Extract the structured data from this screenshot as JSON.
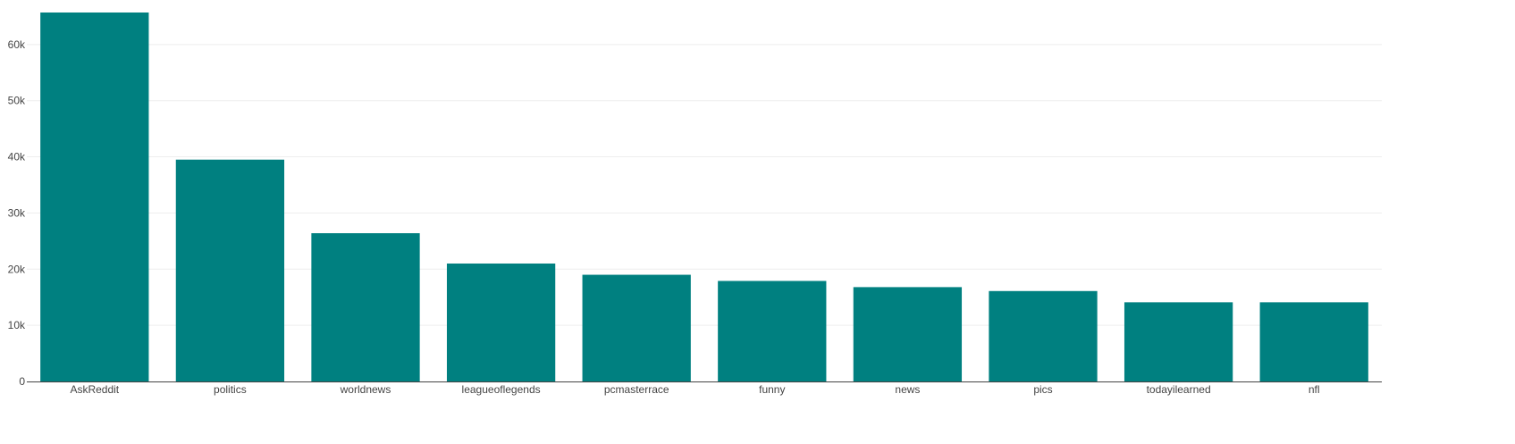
{
  "chart_data": {
    "type": "bar",
    "title": "",
    "xlabel": "",
    "ylabel": "",
    "categories": [
      "AskReddit",
      "politics",
      "worldnews",
      "leagueoflegends",
      "pcmasterrace",
      "funny",
      "news",
      "pics",
      "todayilearned",
      "nfl"
    ],
    "values": [
      65700,
      39500,
      26400,
      21000,
      19000,
      17900,
      16800,
      16100,
      14100,
      14100
    ],
    "ylim": [
      0,
      65700
    ],
    "yticks": [
      0,
      10000,
      20000,
      30000,
      40000,
      50000,
      60000
    ],
    "ytick_labels": [
      "0",
      "10k",
      "20k",
      "30k",
      "40k",
      "50k",
      "60k"
    ],
    "grid": true,
    "legend": "none",
    "bar_color": "#008080"
  }
}
